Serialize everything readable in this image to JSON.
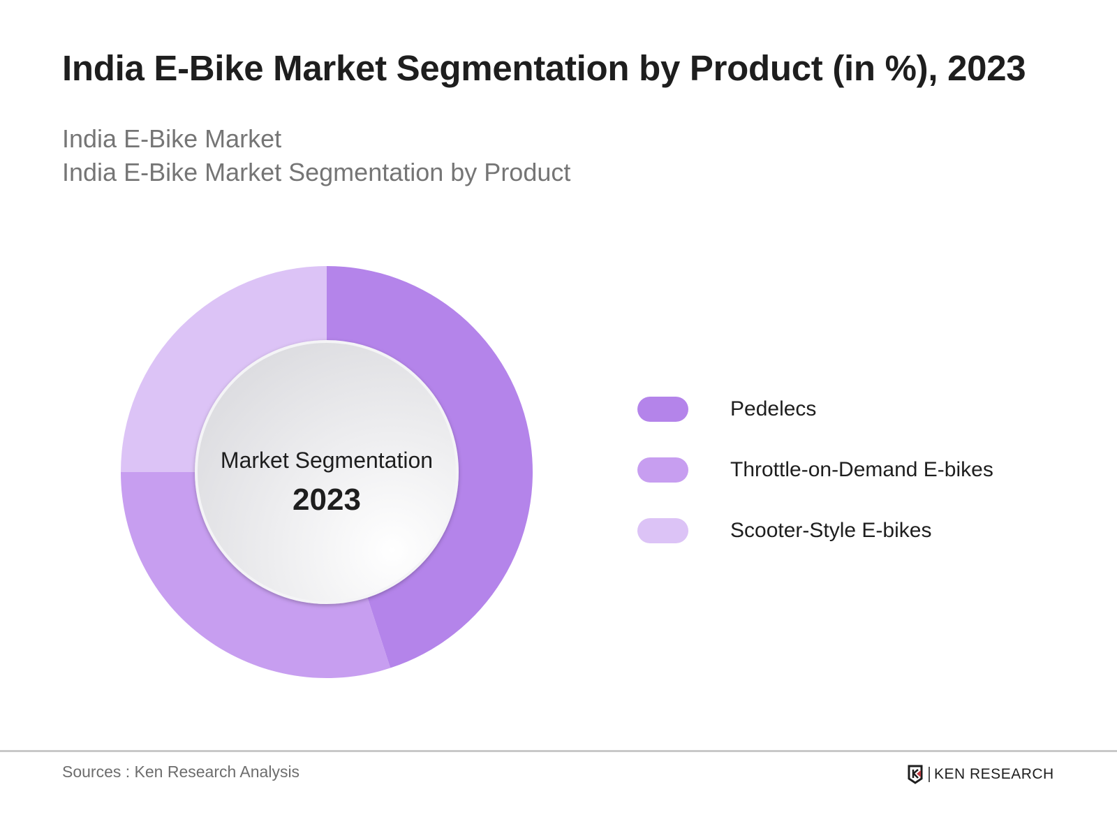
{
  "title": "India E-Bike Market Segmentation by Product (in %), 2023",
  "subtitle_1": "India E-Bike Market",
  "subtitle_2": "India E-Bike Market Segmentation by Product",
  "chart_data": {
    "type": "pie",
    "variant": "donut",
    "title": "India E-Bike Market Segmentation by Product (in %), 2023",
    "center_label": "Market Segmentation",
    "center_year": "2023",
    "categories": [
      "Pedelecs",
      "Throttle-on-Demand E-bikes",
      "Scooter-Style E-bikes"
    ],
    "values": [
      45,
      30,
      25
    ],
    "colors": [
      "#b484ea",
      "#c79ef0",
      "#dcc3f6"
    ],
    "legend_placement": "right"
  },
  "footer": {
    "source": "Sources : Ken Research Analysis",
    "logo_text": "KEN RESEARCH"
  }
}
